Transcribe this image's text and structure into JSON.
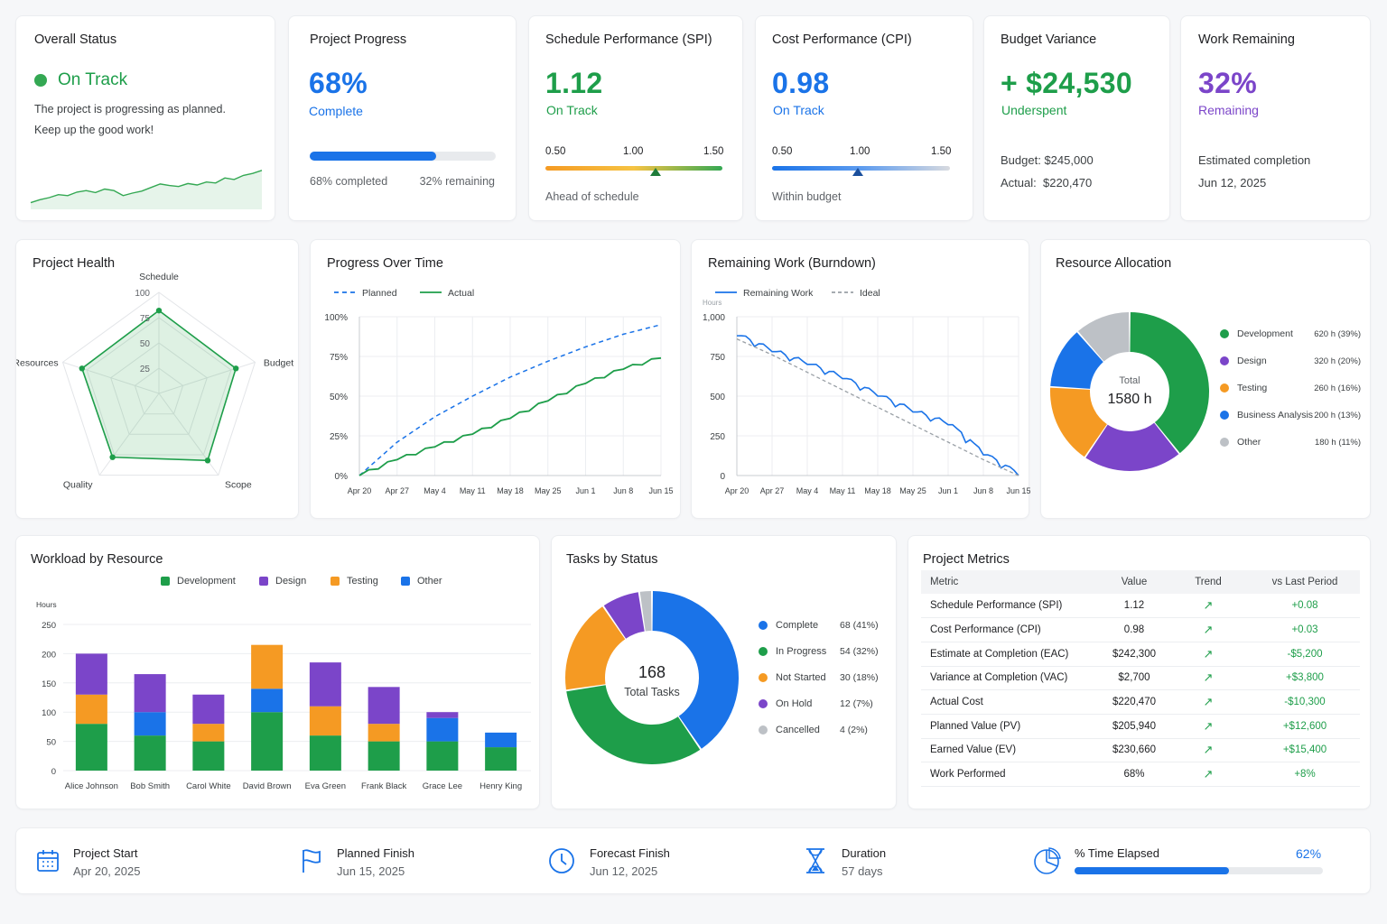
{
  "colors": {
    "green": "#1e9e4a",
    "blue": "#1a73e8",
    "purple": "#7b45c9",
    "orange": "#f59a23",
    "gray": "#bdc1c6"
  },
  "overall": {
    "title": "Overall Status",
    "status": "On Track",
    "line1": "The project is progressing as planned.",
    "line2": "Keep up the good work!",
    "trend": [
      0.06,
      0.12,
      0.16,
      0.22,
      0.2,
      0.27,
      0.3,
      0.26,
      0.33,
      0.3,
      0.2,
      0.25,
      0.29,
      0.36,
      0.43,
      0.4,
      0.38,
      0.44,
      0.41,
      0.47,
      0.45,
      0.55,
      0.52,
      0.6,
      0.64,
      0.7
    ]
  },
  "progress": {
    "title": "Project Progress",
    "value": "68%",
    "label": "Complete",
    "fraction": 0.68,
    "left": "68% completed",
    "right": "32% remaining"
  },
  "spi": {
    "title": "Schedule Performance (SPI)",
    "value": "1.12",
    "label": "On Track",
    "ticks": [
      "0.50",
      "1.00",
      "1.50"
    ],
    "marker": 1.12,
    "note": "Ahead of schedule"
  },
  "cpi": {
    "title": "Cost Performance (CPI)",
    "value": "0.98",
    "label": "On Track",
    "ticks": [
      "0.50",
      "1.00",
      "1.50"
    ],
    "marker": 0.98,
    "note": "Within budget"
  },
  "budget": {
    "title": "Budget Variance",
    "value": "+ $24,530",
    "label": "Underspent",
    "budget_label": "Budget:",
    "budget": "$245,000",
    "actual_label": "Actual:",
    "actual": "$220,470"
  },
  "remaining": {
    "title": "Work Remaining",
    "value": "32%",
    "label": "Remaining",
    "est_label": "Estimated completion",
    "est": "Jun 12, 2025"
  },
  "health": {
    "title": "Project Health",
    "chart_data": {
      "type": "radar",
      "axes": [
        "Schedule",
        "Budget",
        "Scope",
        "Quality",
        "Resources"
      ],
      "values": [
        82,
        80,
        82,
        78,
        80
      ],
      "ticks": [
        "25",
        "50",
        "75",
        "100"
      ],
      "range": [
        0,
        100
      ]
    }
  },
  "progress_time": {
    "title": "Progress Over Time",
    "chart_data": {
      "type": "line",
      "x": [
        "Apr 20",
        "Apr 27",
        "May 4",
        "May 11",
        "May 18",
        "May 25",
        "Jun 1",
        "Jun 8",
        "Jun 15"
      ],
      "yticks": [
        "0%",
        "25%",
        "50%",
        "75%",
        "100%"
      ],
      "ylim": [
        0,
        100
      ],
      "series": [
        {
          "name": "Planned",
          "values": [
            0,
            21,
            37,
            50,
            62,
            72,
            81,
            89,
            95
          ]
        },
        {
          "name": "Actual",
          "values": [
            0,
            10,
            18,
            26,
            36,
            47,
            58,
            67,
            74
          ]
        }
      ]
    }
  },
  "burndown": {
    "title": "Remaining Work (Burndown)",
    "unit": "Hours",
    "chart_data": {
      "type": "line",
      "x": [
        "Apr 20",
        "Apr 27",
        "May 4",
        "May 11",
        "May 18",
        "May 25",
        "Jun 1",
        "Jun 8",
        "Jun 15"
      ],
      "yticks": [
        "0",
        "250",
        "500",
        "750",
        "1,000"
      ],
      "ylim": [
        0,
        1000
      ],
      "series": [
        {
          "name": "Remaining Work",
          "values": [
            880,
            780,
            700,
            610,
            500,
            400,
            320,
            130,
            0
          ]
        },
        {
          "name": "Ideal",
          "values": [
            860,
            760,
            650,
            540,
            430,
            320,
            210,
            100,
            0
          ]
        }
      ]
    }
  },
  "resources": {
    "title": "Resource Allocation",
    "center_label": "Total",
    "center_value": "1580 h",
    "chart_data": {
      "type": "pie",
      "labels": [
        "Development",
        "Design",
        "Testing",
        "Business Analysis",
        "Other"
      ],
      "values": [
        620,
        320,
        260,
        200,
        180
      ],
      "display": [
        "620 h (39%)",
        "320 h (20%)",
        "260 h (16%)",
        "200 h (13%)",
        "180 h (11%)"
      ]
    }
  },
  "workload": {
    "title": "Workload by Resource",
    "unit": "Hours",
    "chart_data": {
      "type": "bar",
      "stacked": true,
      "categories": [
        "Alice Johnson",
        "Bob Smith",
        "Carol White",
        "David Brown",
        "Eva Green",
        "Frank Black",
        "Grace Lee",
        "Henry King"
      ],
      "yticks": [
        "0",
        "50",
        "100",
        "150",
        "200",
        "250"
      ],
      "ylim": [
        0,
        250
      ],
      "series": [
        {
          "name": "Development",
          "values": [
            80,
            60,
            50,
            100,
            60,
            50,
            50,
            40
          ]
        },
        {
          "name": "Other",
          "values": [
            0,
            40,
            0,
            40,
            0,
            0,
            40,
            25
          ]
        },
        {
          "name": "Testing",
          "values": [
            50,
            0,
            30,
            75,
            50,
            30,
            0,
            0
          ]
        },
        {
          "name": "Design",
          "values": [
            70,
            65,
            50,
            0,
            75,
            63,
            10,
            0
          ]
        }
      ]
    }
  },
  "tasks": {
    "title": "Tasks by Status",
    "center_value": "168",
    "center_label": "Total Tasks",
    "chart_data": {
      "type": "pie",
      "labels": [
        "Complete",
        "In Progress",
        "Not Started",
        "On Hold",
        "Cancelled"
      ],
      "values": [
        68,
        54,
        30,
        12,
        4
      ],
      "display": [
        "68 (41%)",
        "54 (32%)",
        "30 (18%)",
        "12 (7%)",
        "4 (2%)"
      ]
    }
  },
  "metrics": {
    "title": "Project Metrics",
    "headers": [
      "Metric",
      "Value",
      "Trend",
      "vs Last Period"
    ],
    "rows": [
      [
        "Schedule Performance (SPI)",
        "1.12",
        "↗",
        "+0.08"
      ],
      [
        "Cost Performance (CPI)",
        "0.98",
        "↗",
        "+0.03"
      ],
      [
        "Estimate at Completion (EAC)",
        "$242,300",
        "↗",
        "-$5,200"
      ],
      [
        "Variance at Completion (VAC)",
        "$2,700",
        "↗",
        "+$3,800"
      ],
      [
        "Actual Cost",
        "$220,470",
        "↗",
        "-$10,300"
      ],
      [
        "Planned Value (PV)",
        "$205,940",
        "↗",
        "+$12,600"
      ],
      [
        "Earned Value (EV)",
        "$230,660",
        "↗",
        "+$15,400"
      ],
      [
        "Work Performed",
        "68%",
        "↗",
        "+8%"
      ]
    ]
  },
  "footer": {
    "start_label": "Project Start",
    "start": "Apr 20, 2025",
    "planned_label": "Planned Finish",
    "planned": "Jun 15, 2025",
    "forecast_label": "Forecast Finish",
    "forecast": "Jun 12, 2025",
    "duration_label": "Duration",
    "duration": "57 days",
    "elapsed_label": "% Time Elapsed",
    "elapsed": "62%",
    "elapsed_fraction": 0.62
  }
}
